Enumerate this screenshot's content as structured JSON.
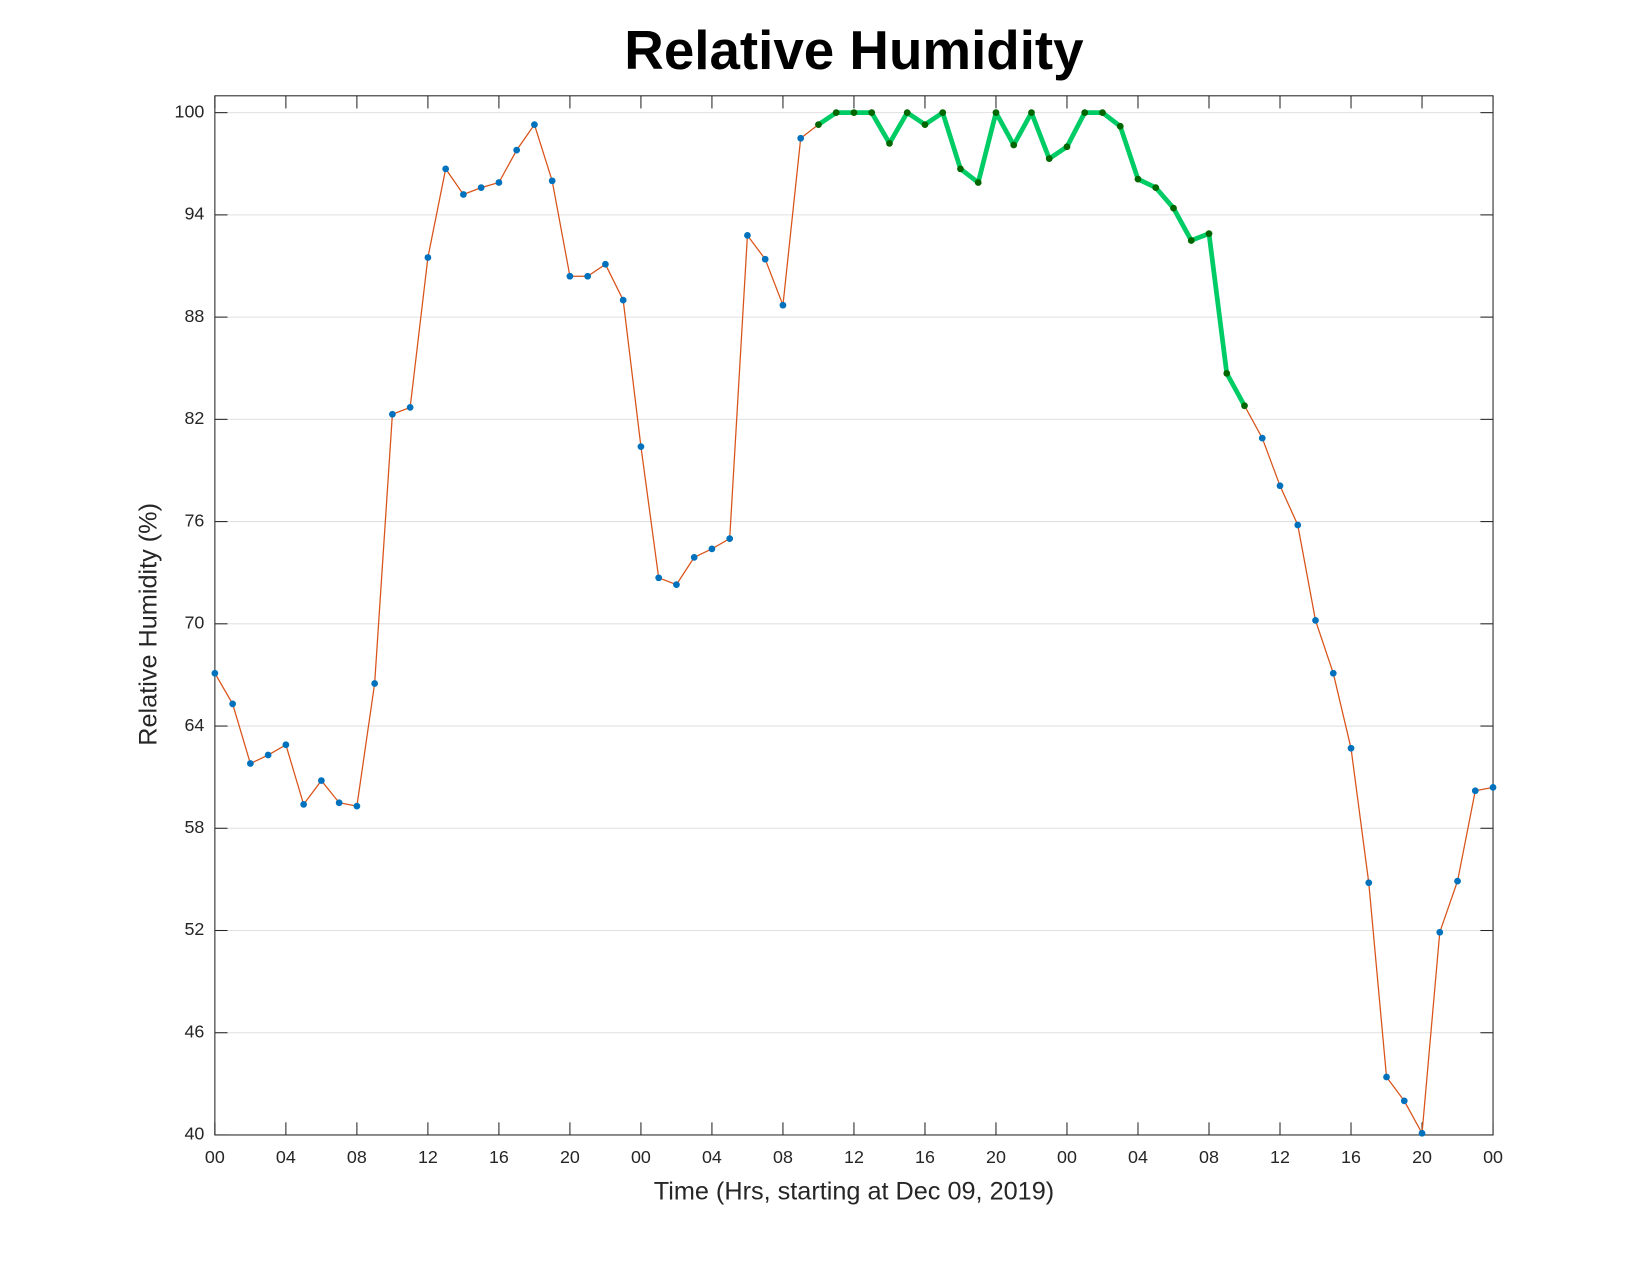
{
  "chart_data": {
    "type": "line",
    "title": "Relative Humidity",
    "xlabel": "Time (Hrs, starting at Dec 09, 2019)",
    "ylabel": "Relative Humidity (%)",
    "x": [
      0,
      1,
      2,
      3,
      4,
      5,
      6,
      7,
      8,
      9,
      10,
      11,
      12,
      13,
      14,
      15,
      16,
      17,
      18,
      19,
      20,
      21,
      22,
      23,
      24,
      25,
      26,
      27,
      28,
      29,
      30,
      31,
      32,
      33,
      34,
      35,
      36,
      37,
      38,
      39,
      40,
      41,
      42,
      43,
      44,
      45,
      46,
      47,
      48,
      49,
      50,
      51,
      52,
      53,
      54,
      55,
      56,
      57,
      58,
      59,
      60,
      61,
      62,
      63,
      64,
      65,
      66,
      67,
      68,
      69,
      70,
      71,
      72
    ],
    "series": [
      {
        "color": "#d95319",
        "marker_color": "#0072bd",
        "values": [
          67.1,
          65.3,
          61.8,
          62.3,
          62.9,
          59.4,
          60.8,
          59.5,
          59.3,
          66.5,
          82.3,
          82.7,
          91.5,
          96.7,
          95.2,
          95.6,
          95.9,
          97.8,
          99.3,
          96.0,
          90.4,
          90.4,
          91.1,
          89.0,
          80.4,
          72.7,
          72.3,
          73.9,
          74.4,
          75.0,
          92.8,
          91.4,
          88.7,
          98.5,
          99.3,
          100,
          100,
          100,
          98.2,
          100,
          99.3,
          100,
          96.7,
          95.9,
          100,
          98.1,
          100,
          97.3,
          98.0,
          100,
          100,
          99.2,
          96.1,
          95.6,
          94.4,
          92.5,
          92.9,
          84.7,
          82.8,
          80.9,
          78.1,
          75.8,
          70.2,
          67.1,
          62.7,
          54.8,
          43.4,
          42.0,
          40.1,
          51.9,
          54.9,
          60.2,
          60.4
        ],
        "highlight": {
          "x": [
            34,
            58
          ],
          "color": "#00cc66",
          "marker_color": "#006600"
        }
      }
    ],
    "xlim": [
      0,
      72
    ],
    "xticks": [
      {
        "value": 0,
        "label": "00"
      },
      {
        "value": 4,
        "label": "04"
      },
      {
        "value": 8,
        "label": "08"
      },
      {
        "value": 12,
        "label": "12"
      },
      {
        "value": 16,
        "label": "16"
      },
      {
        "value": 20,
        "label": "20"
      },
      {
        "value": 24,
        "label": "00"
      },
      {
        "value": 28,
        "label": "04"
      },
      {
        "value": 32,
        "label": "08"
      },
      {
        "value": 36,
        "label": "12"
      },
      {
        "value": 40,
        "label": "16"
      },
      {
        "value": 44,
        "label": "20"
      },
      {
        "value": 48,
        "label": "00"
      },
      {
        "value": 52,
        "label": "04"
      },
      {
        "value": 56,
        "label": "08"
      },
      {
        "value": 60,
        "label": "12"
      },
      {
        "value": 64,
        "label": "16"
      },
      {
        "value": 68,
        "label": "20"
      },
      {
        "value": 72,
        "label": "00"
      }
    ],
    "ylim": [
      40,
      100
    ],
    "yticks": [
      40,
      46,
      52,
      58,
      64,
      70,
      76,
      82,
      88,
      94,
      100
    ],
    "grid": "y"
  }
}
